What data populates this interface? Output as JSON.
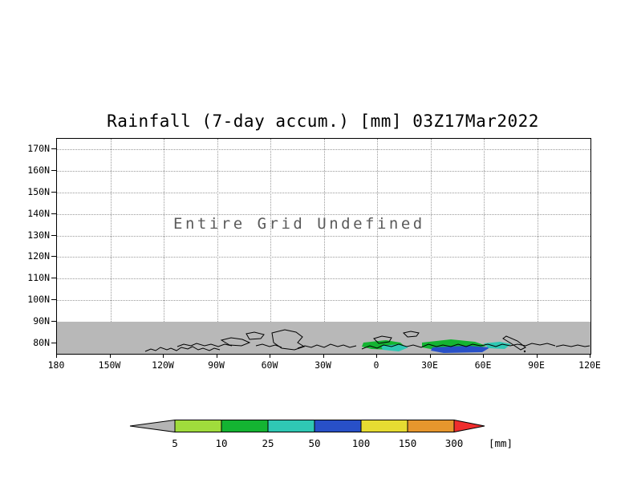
{
  "title": "Rainfall (7-day accum.) [mm] 03Z17Mar2022",
  "annotation": "Entire Grid Undefined",
  "axes": {
    "y_ticks": [
      "170N",
      "160N",
      "150N",
      "140N",
      "130N",
      "120N",
      "110N",
      "100N",
      "90N",
      "80N"
    ],
    "x_ticks": [
      "180",
      "150W",
      "120W",
      "90W",
      "60W",
      "30W",
      "0",
      "30E",
      "60E",
      "90E",
      "120E"
    ]
  },
  "colorbar": {
    "labels": [
      "5",
      "10",
      "25",
      "50",
      "100",
      "150",
      "300"
    ],
    "unit": "[mm]",
    "left_arrow_color": "#b4b4b4",
    "right_arrow_color": "#f02d2d",
    "segment_colors": [
      "#a0dc3c",
      "#14b432",
      "#2fc8b4",
      "#2850c8",
      "#e6dc32",
      "#e6962d"
    ]
  },
  "map": {
    "undefined_band_color": "#b8b8b8",
    "coastline_color": "#000000",
    "patch_colors": {
      "green": "#14b432",
      "teal": "#2fc8b4",
      "blue": "#2850c8"
    }
  },
  "chart_data": {
    "type": "heatmap",
    "title": "Rainfall (7-day accum.) [mm] 03Z17Mar2022",
    "x_ticks": [
      "180",
      "150W",
      "120W",
      "90W",
      "60W",
      "30W",
      "0",
      "30E",
      "60E",
      "90E",
      "120E"
    ],
    "y_ticks": [
      "170N",
      "160N",
      "150N",
      "140N",
      "130N",
      "120N",
      "110N",
      "100N",
      "90N",
      "80N"
    ],
    "annotation": "Entire Grid Undefined",
    "grid": "dotted",
    "legend_position": "bottom",
    "colorbar": {
      "unit": "[mm]",
      "thresholds": [
        5,
        10,
        25,
        50,
        100,
        150,
        300
      ],
      "colors": [
        "#b4b4b4",
        "#a0dc3c",
        "#14b432",
        "#2fc8b4",
        "#2850c8",
        "#e6dc32",
        "#e6962d",
        "#f02d2d"
      ]
    },
    "undefined_region": "Main grid labeled undefined; gray no-data band with black coastlines spans full width below the 90N gridline",
    "visible_rainfall_patches": [
      {
        "location": "near 0E-30E at ~80N",
        "values_mm": "10-50",
        "colors": [
          "green",
          "cyan"
        ]
      },
      {
        "location": "near 30E-60E at ~80N",
        "values_mm": "10-100",
        "colors": [
          "green",
          "blue",
          "cyan"
        ]
      }
    ]
  }
}
